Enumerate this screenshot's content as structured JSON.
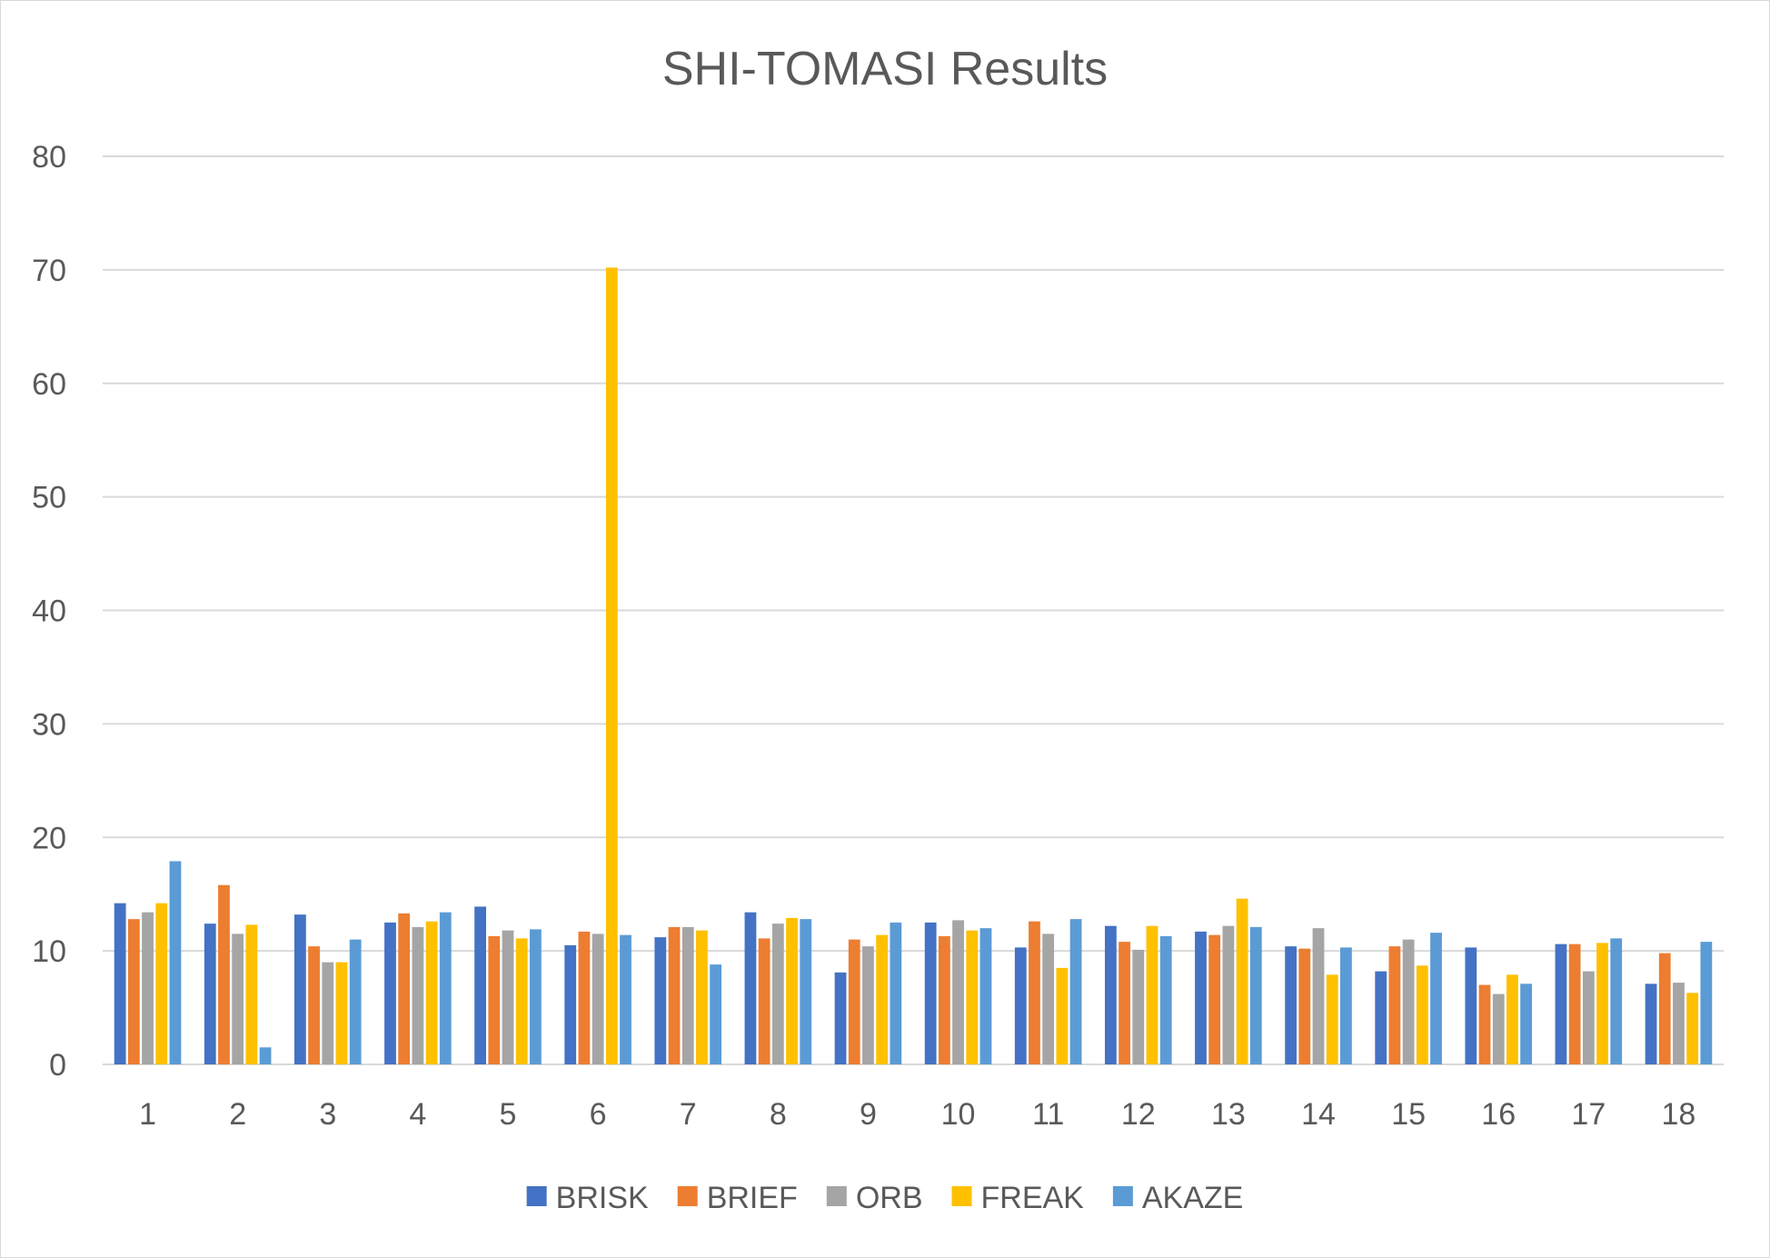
{
  "chart_data": {
    "type": "bar",
    "title": "SHI-TOMASI Results",
    "xlabel": "",
    "ylabel": "",
    "ylim": [
      0,
      80
    ],
    "yticks": [
      0,
      10,
      20,
      30,
      40,
      50,
      60,
      70,
      80
    ],
    "grid": true,
    "legend_position": "bottom",
    "categories": [
      "1",
      "2",
      "3",
      "4",
      "5",
      "6",
      "7",
      "8",
      "9",
      "10",
      "11",
      "12",
      "13",
      "14",
      "15",
      "16",
      "17",
      "18"
    ],
    "series": [
      {
        "name": "BRISK",
        "color": "#4472C4",
        "values": [
          14.2,
          12.4,
          13.2,
          12.5,
          13.9,
          10.5,
          11.2,
          13.4,
          8.1,
          12.5,
          10.3,
          12.2,
          11.7,
          10.4,
          8.2,
          10.3,
          10.6,
          7.1
        ]
      },
      {
        "name": "BRIEF",
        "color": "#ED7D31",
        "values": [
          12.8,
          15.8,
          10.4,
          13.3,
          11.3,
          11.7,
          12.1,
          11.1,
          11.0,
          11.3,
          12.6,
          10.8,
          11.4,
          10.2,
          10.4,
          7.0,
          10.6,
          9.8
        ]
      },
      {
        "name": "ORB",
        "color": "#A5A5A5",
        "values": [
          13.4,
          11.5,
          9.0,
          12.1,
          11.8,
          11.5,
          12.1,
          12.4,
          10.4,
          12.7,
          11.5,
          10.1,
          12.2,
          12.0,
          11.0,
          6.2,
          8.2,
          7.2
        ]
      },
      {
        "name": "FREAK",
        "color": "#FFC000",
        "values": [
          14.2,
          12.3,
          9.0,
          12.6,
          11.1,
          70.2,
          11.8,
          12.9,
          11.4,
          11.8,
          8.5,
          12.2,
          14.6,
          7.9,
          8.7,
          7.9,
          10.7,
          6.3
        ]
      },
      {
        "name": "AKAZE",
        "color": "#5B9BD5",
        "values": [
          17.9,
          1.5,
          11.0,
          13.4,
          11.9,
          11.4,
          8.8,
          12.8,
          12.5,
          12.0,
          12.8,
          11.3,
          12.1,
          10.3,
          11.6,
          7.1,
          11.1,
          10.8
        ]
      }
    ]
  }
}
